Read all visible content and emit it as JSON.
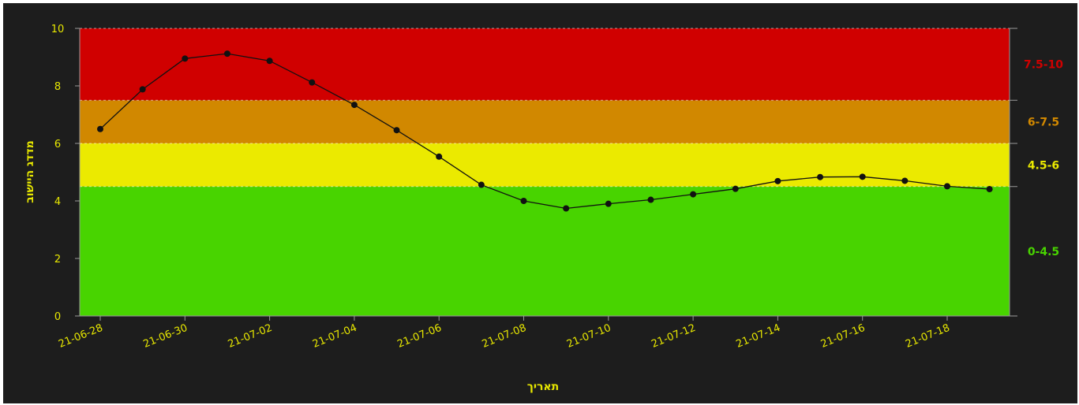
{
  "chart_data": {
    "type": "line",
    "xlabel": "תאריך",
    "ylabel": "מדדג היישוב",
    "ylim": [
      0,
      10
    ],
    "y_ticks": [
      "0",
      "2",
      "4",
      "6",
      "8",
      "10"
    ],
    "x_tick_labels": [
      "21-06-28",
      "21-06-30",
      "21-07-02",
      "21-07-04",
      "21-07-06",
      "21-07-08",
      "21-07-10",
      "21-07-12",
      "21-07-14",
      "21-07-16",
      "21-07-18"
    ],
    "x": [
      "21-06-28",
      "21-06-29",
      "21-06-30",
      "21-07-01",
      "21-07-02",
      "21-07-03",
      "21-07-04",
      "21-07-05",
      "21-07-06",
      "21-07-07",
      "21-07-08",
      "21-07-09",
      "21-07-10",
      "21-07-11",
      "21-07-12",
      "21-07-13",
      "21-07-14",
      "21-07-15",
      "21-07-16",
      "21-07-17",
      "21-07-18",
      "21-07-19"
    ],
    "values": [
      6.5,
      7.88,
      8.95,
      9.12,
      8.87,
      8.12,
      7.34,
      6.46,
      5.54,
      4.56,
      4.0,
      3.74,
      3.9,
      4.04,
      4.23,
      4.42,
      4.69,
      4.83,
      4.84,
      4.7,
      4.51,
      4.41
    ],
    "bands": [
      {
        "label": "0-4.5",
        "from": 0,
        "to": 4.5,
        "color": "#48d400"
      },
      {
        "label": "4.5-6",
        "from": 4.5,
        "to": 6,
        "color": "#ebea00"
      },
      {
        "label": "6-7.5",
        "from": 6,
        "to": 7.5,
        "color": "#d18800"
      },
      {
        "label": "7.5-10",
        "from": 7.5,
        "to": 10,
        "color": "#d00000"
      }
    ],
    "band_label_colors": [
      "#48d400",
      "#ebea00",
      "#d18800",
      "#d00000"
    ],
    "line_color": "#111111",
    "background": "#1d1d1d",
    "axis_text_color": "#e8e800"
  }
}
